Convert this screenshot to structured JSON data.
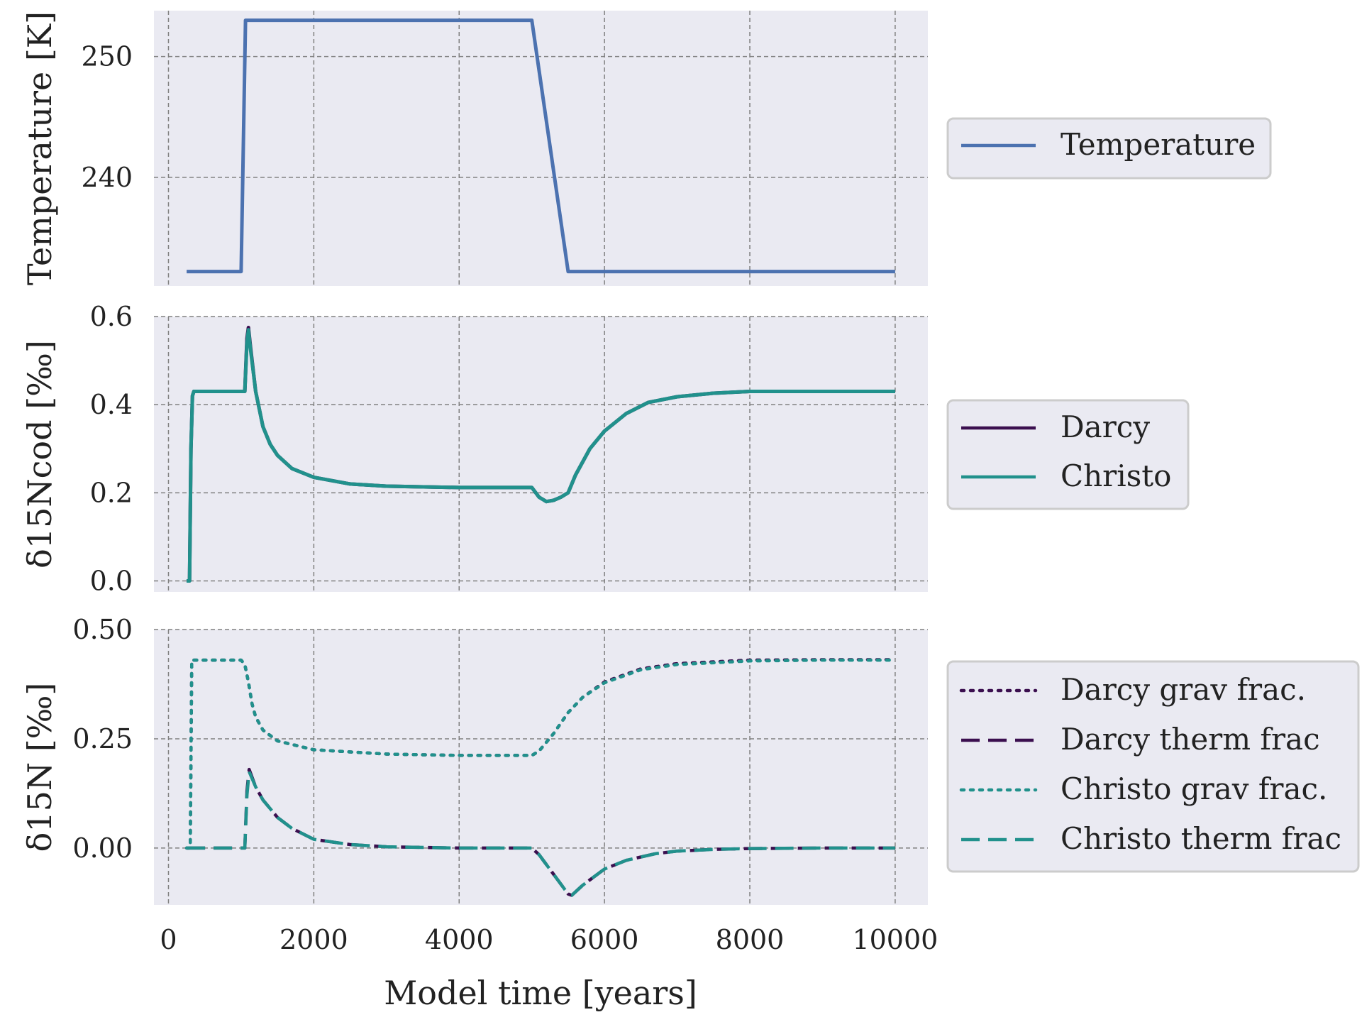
{
  "chart_data": [
    {
      "type": "line",
      "ylabel": "Temperature [K]",
      "xlim": [
        -200,
        10450
      ],
      "ylim": [
        231.0,
        253.8
      ],
      "x_ticks": [
        0,
        2000,
        4000,
        6000,
        8000,
        10000
      ],
      "y_ticks": [
        240,
        250
      ],
      "y_tick_labels": [
        "240",
        "250"
      ],
      "grid": true,
      "legend_position": "right",
      "series": [
        {
          "name": "Temperature",
          "color": "#4c72b0",
          "style": "solid",
          "x": [
            250,
            1000,
            1060,
            5000,
            5500,
            10000
          ],
          "y": [
            232.2,
            232.2,
            253.0,
            253.0,
            232.2,
            232.2
          ]
        }
      ]
    },
    {
      "type": "line",
      "ylabel": "δ15Ncod [‰]",
      "xlim": [
        -200,
        10450
      ],
      "ylim": [
        -0.025,
        0.6
      ],
      "x_ticks": [
        0,
        2000,
        4000,
        6000,
        8000,
        10000
      ],
      "y_ticks": [
        0.0,
        0.2,
        0.4,
        0.6
      ],
      "y_tick_labels": [
        "0.0",
        "0.2",
        "0.4",
        "0.6"
      ],
      "grid": true,
      "legend_position": "right",
      "series": [
        {
          "name": "Darcy",
          "color": "#3b0f4f",
          "style": "solid",
          "x": [
            250,
            290,
            310,
            330,
            350,
            400,
            1000,
            1050,
            1080,
            1100,
            1130,
            1200,
            1300,
            1400,
            1500,
            1700,
            2000,
            2500,
            3000,
            4000,
            5000,
            5100,
            5200,
            5300,
            5400,
            5500,
            5600,
            5800,
            6000,
            6300,
            6600,
            7000,
            7500,
            8000,
            9000,
            10000
          ],
          "y": [
            0.0,
            0.0,
            0.3,
            0.42,
            0.43,
            0.43,
            0.43,
            0.43,
            0.55,
            0.575,
            0.53,
            0.43,
            0.35,
            0.31,
            0.285,
            0.255,
            0.235,
            0.22,
            0.215,
            0.212,
            0.212,
            0.19,
            0.18,
            0.183,
            0.19,
            0.2,
            0.24,
            0.3,
            0.34,
            0.38,
            0.405,
            0.418,
            0.426,
            0.43,
            0.43,
            0.43
          ]
        },
        {
          "name": "Christo",
          "color": "#21918c",
          "style": "solid",
          "x": [
            250,
            290,
            310,
            330,
            350,
            400,
            1000,
            1050,
            1080,
            1100,
            1130,
            1200,
            1300,
            1400,
            1500,
            1700,
            2000,
            2500,
            3000,
            4000,
            5000,
            5100,
            5200,
            5300,
            5400,
            5500,
            5600,
            5800,
            6000,
            6300,
            6600,
            7000,
            7500,
            8000,
            9000,
            10000
          ],
          "y": [
            0.0,
            0.0,
            0.3,
            0.42,
            0.43,
            0.43,
            0.43,
            0.43,
            0.54,
            0.57,
            0.525,
            0.43,
            0.35,
            0.31,
            0.285,
            0.255,
            0.235,
            0.22,
            0.215,
            0.212,
            0.212,
            0.19,
            0.18,
            0.183,
            0.19,
            0.2,
            0.24,
            0.3,
            0.34,
            0.38,
            0.405,
            0.418,
            0.426,
            0.43,
            0.43,
            0.43
          ]
        }
      ]
    },
    {
      "type": "line",
      "ylabel": "δ15N [‰]",
      "xlim": [
        -200,
        10450
      ],
      "ylim": [
        -0.13,
        0.5
      ],
      "x_ticks": [
        0,
        2000,
        4000,
        6000,
        8000,
        10000
      ],
      "x_tick_labels": [
        "0",
        "2000",
        "4000",
        "6000",
        "8000",
        "10000"
      ],
      "xlabel": "Model time [years]",
      "y_ticks": [
        0.0,
        0.25,
        0.5
      ],
      "y_tick_labels": [
        "0.00",
        "0.25",
        "0.50"
      ],
      "grid": true,
      "legend_position": "right",
      "series": [
        {
          "name": "Darcy grav frac.",
          "color": "#3b0f4f",
          "style": "dotted",
          "x": [
            250,
            300,
            320,
            1000,
            1050,
            1100,
            1150,
            1200,
            1300,
            1500,
            2000,
            3000,
            4000,
            5000,
            5100,
            5300,
            5500,
            5700,
            6000,
            6500,
            7000,
            8000,
            9000,
            10000
          ],
          "y": [
            0.0,
            0.0,
            0.43,
            0.43,
            0.42,
            0.38,
            0.33,
            0.3,
            0.27,
            0.245,
            0.225,
            0.215,
            0.212,
            0.212,
            0.222,
            0.262,
            0.31,
            0.345,
            0.38,
            0.41,
            0.422,
            0.43,
            0.431,
            0.431
          ]
        },
        {
          "name": "Darcy therm frac",
          "color": "#3b0f4f",
          "style": "dashed",
          "x": [
            250,
            1000,
            1050,
            1080,
            1110,
            1200,
            1300,
            1500,
            1700,
            2000,
            2500,
            3000,
            4000,
            5000,
            5100,
            5300,
            5500,
            5550,
            5700,
            6000,
            6300,
            6700,
            7000,
            7500,
            8000,
            9000,
            10000
          ],
          "y": [
            0.0,
            0.0,
            0.0,
            0.13,
            0.18,
            0.14,
            0.11,
            0.07,
            0.045,
            0.02,
            0.008,
            0.003,
            0.0,
            0.0,
            -0.015,
            -0.06,
            -0.105,
            -0.108,
            -0.085,
            -0.048,
            -0.028,
            -0.013,
            -0.007,
            -0.003,
            -0.001,
            0.0,
            0.0
          ]
        },
        {
          "name": "Christo grav frac.",
          "color": "#21918c",
          "style": "dotted",
          "x": [
            250,
            300,
            320,
            1000,
            1050,
            1100,
            1150,
            1200,
            1300,
            1500,
            2000,
            3000,
            4000,
            5000,
            5100,
            5300,
            5500,
            5700,
            6000,
            6500,
            7000,
            8000,
            9000,
            10000
          ],
          "y": [
            0.0,
            0.0,
            0.43,
            0.43,
            0.42,
            0.38,
            0.33,
            0.3,
            0.27,
            0.245,
            0.225,
            0.215,
            0.212,
            0.212,
            0.222,
            0.262,
            0.31,
            0.345,
            0.378,
            0.408,
            0.42,
            0.428,
            0.43,
            0.43
          ]
        },
        {
          "name": "Christo therm frac",
          "color": "#21918c",
          "style": "dashed",
          "x": [
            250,
            1000,
            1050,
            1080,
            1110,
            1200,
            1300,
            1500,
            1700,
            2000,
            2500,
            3000,
            4000,
            5000,
            5100,
            5300,
            5500,
            5550,
            5700,
            6000,
            6300,
            6700,
            7000,
            7500,
            8000,
            9000,
            10000
          ],
          "y": [
            0.0,
            0.0,
            0.0,
            0.12,
            0.175,
            0.14,
            0.11,
            0.07,
            0.045,
            0.02,
            0.008,
            0.003,
            0.0,
            0.0,
            -0.015,
            -0.06,
            -0.105,
            -0.108,
            -0.085,
            -0.048,
            -0.028,
            -0.013,
            -0.007,
            -0.003,
            -0.001,
            0.0,
            0.0
          ]
        }
      ]
    }
  ],
  "colors": {
    "panel_background": "#eaeaf2",
    "grid": "#808080",
    "legend_background": "#eaeaf2",
    "legend_border": "#cccccc"
  }
}
